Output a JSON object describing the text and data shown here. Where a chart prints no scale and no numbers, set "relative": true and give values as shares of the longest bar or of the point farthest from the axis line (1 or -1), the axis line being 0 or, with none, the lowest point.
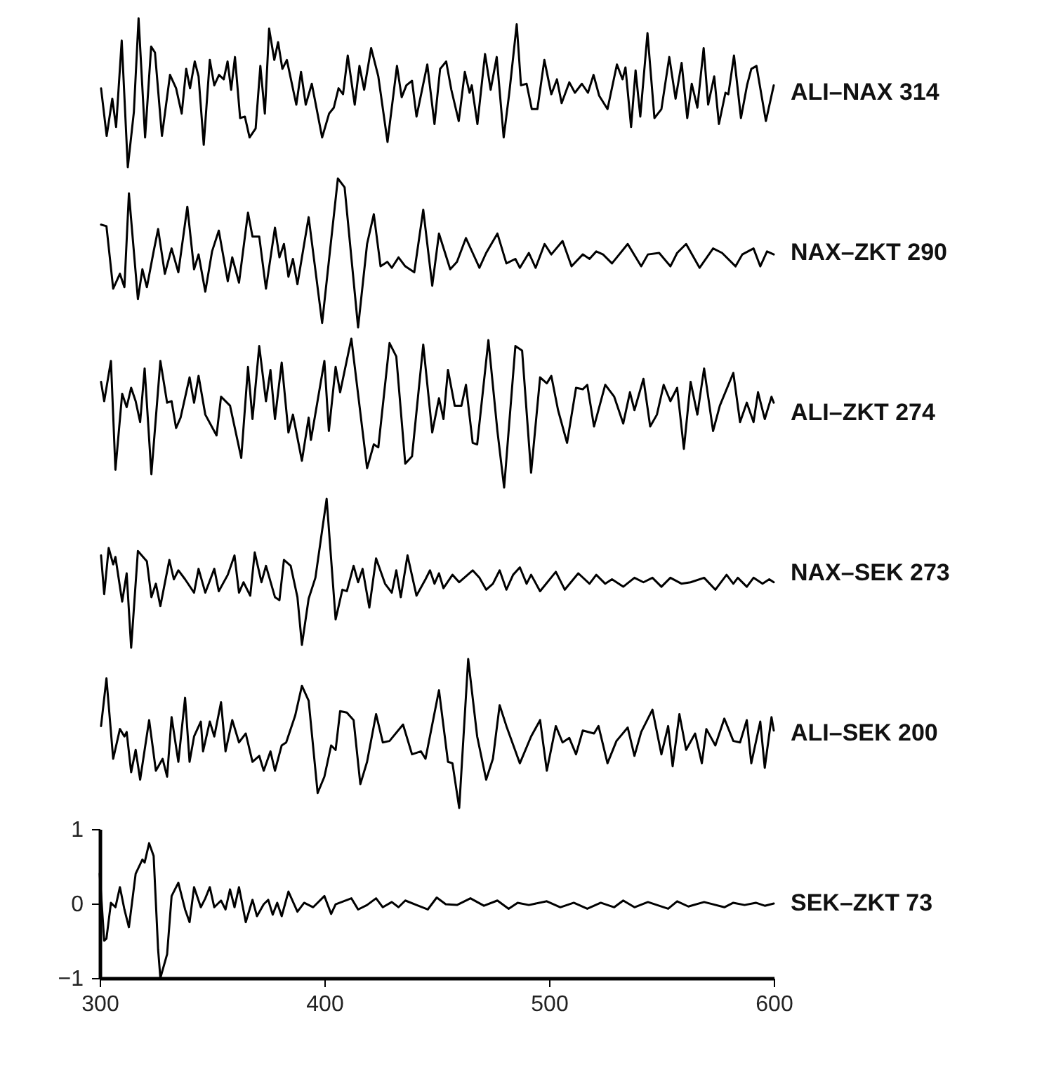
{
  "chart_data": [
    {
      "type": "line",
      "relative": true,
      "xlim": [
        300,
        600
      ],
      "tick_labels": false,
      "x": [
        300.6,
        303.1,
        305.6,
        307.3,
        309.8,
        312.5,
        315.2,
        317.3,
        320.2,
        322.9,
        324.6,
        327.7,
        331.3,
        334.0,
        336.5,
        338.5,
        340.2,
        342.3,
        344.0,
        346.3,
        349.0,
        351.0,
        353.1,
        355.2,
        356.9,
        358.5,
        360.2,
        362.5,
        364.6,
        366.7,
        369.4,
        371.5,
        373.5,
        375.4,
        377.7,
        379.4,
        381.3,
        383.3,
        387.5,
        389.6,
        391.7,
        394.4,
        399.0,
        402.1,
        404.2,
        406.3,
        408.3,
        410.4,
        413.5,
        415.6,
        417.7,
        420.8,
        424.0,
        428.1,
        432.3,
        434.4,
        436.5,
        439.0,
        441.0,
        445.8,
        449.0,
        451.5,
        454.2,
        456.5,
        459.8,
        462.5,
        464.6,
        465.6,
        468.1,
        471.5,
        474.0,
        476.7,
        479.8,
        482.3,
        485.6,
        487.5,
        490.0,
        492.3,
        494.8,
        497.9,
        501.0,
        503.5,
        505.6,
        509.0,
        511.5,
        514.6,
        517.3,
        519.8,
        522.3,
        526.0,
        530.2,
        532.7,
        534.0,
        536.5,
        538.5,
        540.6,
        543.8,
        546.9,
        550.0,
        553.5,
        556.3,
        559.0,
        561.5,
        563.5,
        566.0,
        568.8,
        570.8,
        573.5,
        575.6,
        578.5,
        579.8,
        582.3,
        585.4,
        588.1,
        590.0,
        592.3,
        596.5,
        600.0
      ],
      "series": [
        {
          "name": "ALI–NAX 314",
          "color": "#000000",
          "values": [
            0.53,
            0.21,
            0.46,
            0.27,
            0.85,
            0,
            0.37,
            1,
            0.2,
            0.81,
            0.77,
            0.21,
            0.62,
            0.53,
            0.36,
            0.66,
            0.53,
            0.71,
            0.61,
            0.15,
            0.72,
            0.55,
            0.62,
            0.59,
            0.71,
            0.52,
            0.74,
            0.33,
            0.34,
            0.2,
            0.26,
            0.68,
            0.36,
            0.93,
            0.72,
            0.84,
            0.66,
            0.72,
            0.42,
            0.64,
            0.42,
            0.56,
            0.2,
            0.36,
            0.4,
            0.53,
            0.49,
            0.75,
            0.42,
            0.68,
            0.52,
            0.8,
            0.61,
            0.17,
            0.68,
            0.47,
            0.55,
            0.58,
            0.34,
            0.69,
            0.29,
            0.66,
            0.71,
            0.52,
            0.31,
            0.64,
            0.5,
            0.55,
            0.29,
            0.76,
            0.52,
            0.74,
            0.2,
            0.5,
            0.96,
            0.55,
            0.56,
            0.39,
            0.39,
            0.72,
            0.49,
            0.59,
            0.43,
            0.57,
            0.5,
            0.56,
            0.5,
            0.62,
            0.48,
            0.39,
            0.69,
            0.59,
            0.67,
            0.27,
            0.65,
            0.34,
            0.9,
            0.33,
            0.39,
            0.74,
            0.46,
            0.7,
            0.33,
            0.56,
            0.4,
            0.8,
            0.42,
            0.61,
            0.29,
            0.5,
            0.49,
            0.75,
            0.33,
            0.55,
            0.66,
            0.68,
            0.31,
            0.55
          ]
        }
      ]
    },
    {
      "type": "line",
      "relative": true,
      "xlim": [
        300,
        600
      ],
      "tick_labels": false,
      "x": [
        300.6,
        303,
        306,
        309,
        311,
        313,
        317,
        319,
        321,
        324,
        326,
        329,
        332,
        335,
        339,
        342,
        344,
        347,
        350,
        353,
        357,
        359,
        362,
        366,
        368,
        371,
        374,
        378,
        380,
        382,
        384,
        386,
        388,
        393,
        399,
        406,
        409,
        415,
        419,
        422,
        425,
        428,
        430,
        433,
        436,
        440,
        444,
        448,
        451,
        456,
        459,
        463,
        466,
        469,
        472,
        477,
        481,
        485,
        487,
        491,
        494,
        498,
        501,
        506,
        510,
        515,
        518,
        521,
        524,
        528,
        535,
        541,
        544,
        549,
        554,
        557,
        561,
        567,
        573,
        577,
        583,
        586,
        591,
        594,
        597,
        600
      ],
      "series": [
        {
          "name": "NAX–ZKT 290",
          "color": "#000000",
          "values": [
            0.69,
            0.68,
            0.26,
            0.36,
            0.27,
            0.9,
            0.19,
            0.39,
            0.27,
            0.51,
            0.66,
            0.36,
            0.53,
            0.37,
            0.81,
            0.39,
            0.49,
            0.24,
            0.51,
            0.65,
            0.31,
            0.47,
            0.3,
            0.77,
            0.61,
            0.61,
            0.26,
            0.67,
            0.47,
            0.56,
            0.34,
            0.46,
            0.29,
            0.74,
            0.03,
            1.0,
            0.94,
            0,
            0.56,
            0.76,
            0.41,
            0.44,
            0.4,
            0.47,
            0.41,
            0.37,
            0.79,
            0.28,
            0.63,
            0.39,
            0.44,
            0.6,
            0.5,
            0.4,
            0.5,
            0.63,
            0.43,
            0.46,
            0.4,
            0.5,
            0.4,
            0.56,
            0.49,
            0.58,
            0.41,
            0.49,
            0.46,
            0.51,
            0.49,
            0.43,
            0.56,
            0.41,
            0.49,
            0.5,
            0.41,
            0.5,
            0.56,
            0.4,
            0.53,
            0.5,
            0.41,
            0.49,
            0.53,
            0.41,
            0.51,
            0.49
          ]
        }
      ]
    },
    {
      "type": "line",
      "relative": true,
      "xlim": [
        300,
        600
      ],
      "tick_labels": false,
      "x": [
        300.6,
        302,
        305,
        307,
        310,
        312,
        314,
        316,
        318,
        320,
        323,
        327,
        330,
        332,
        334,
        336,
        340,
        342,
        344,
        347,
        352,
        354,
        358,
        363,
        366,
        368,
        371,
        374,
        376,
        378,
        381,
        384,
        386,
        390,
        393,
        394,
        400,
        402,
        405,
        407,
        412,
        419,
        422,
        424,
        429,
        432,
        436,
        439,
        444,
        448,
        451,
        453,
        455,
        458,
        461,
        463,
        466,
        468,
        473,
        477,
        480,
        485,
        488,
        492,
        496,
        499,
        501,
        504,
        508,
        512,
        515,
        517,
        520,
        525,
        529,
        533,
        536,
        538,
        542,
        545,
        548,
        551,
        554,
        557,
        560,
        563,
        566,
        569,
        573,
        576,
        582,
        585,
        588,
        591,
        593,
        596,
        599,
        600
      ],
      "series": [
        {
          "name": "ALI–ZKT 274",
          "color": "#000000",
          "values": [
            0.71,
            0.58,
            0.85,
            0.12,
            0.63,
            0.54,
            0.67,
            0.58,
            0.44,
            0.8,
            0.09,
            0.85,
            0.57,
            0.58,
            0.4,
            0.47,
            0.74,
            0.57,
            0.75,
            0.49,
            0.35,
            0.61,
            0.55,
            0.2,
            0.81,
            0.46,
            0.95,
            0.58,
            0.79,
            0.46,
            0.84,
            0.37,
            0.49,
            0.18,
            0.47,
            0.32,
            0.85,
            0.38,
            0.81,
            0.64,
            1.0,
            0.13,
            0.29,
            0.27,
            0.97,
            0.88,
            0.16,
            0.21,
            0.96,
            0.37,
            0.6,
            0.46,
            0.79,
            0.55,
            0.55,
            0.69,
            0.3,
            0.29,
            0.99,
            0.38,
            0,
            0.95,
            0.92,
            0.1,
            0.74,
            0.7,
            0.75,
            0.52,
            0.3,
            0.67,
            0.66,
            0.69,
            0.41,
            0.69,
            0.61,
            0.43,
            0.64,
            0.52,
            0.73,
            0.41,
            0.49,
            0.69,
            0.58,
            0.67,
            0.26,
            0.71,
            0.49,
            0.8,
            0.38,
            0.55,
            0.77,
            0.44,
            0.57,
            0.44,
            0.64,
            0.46,
            0.61,
            0.57
          ]
        }
      ]
    },
    {
      "type": "line",
      "relative": true,
      "xlim": [
        300,
        600
      ],
      "tick_labels": false,
      "x": [
        300.6,
        302,
        304,
        306,
        307,
        310,
        312,
        314,
        317,
        321,
        323,
        325,
        327,
        331,
        333,
        335,
        338,
        342,
        344,
        347,
        351,
        353,
        357,
        360,
        362,
        364,
        367,
        369,
        372,
        374,
        378,
        380,
        382,
        385,
        388,
        390,
        393,
        396,
        401,
        405,
        408,
        410,
        413,
        415,
        417,
        420,
        423,
        427,
        430,
        432,
        434,
        437,
        441,
        445,
        447,
        449,
        451,
        453,
        457,
        460,
        466,
        469,
        472,
        475,
        478,
        481,
        484,
        487,
        490,
        492,
        496,
        503,
        507,
        513,
        518,
        521,
        525,
        528,
        533,
        538,
        542,
        546,
        550,
        554,
        559,
        563,
        569,
        574,
        579,
        582,
        584,
        588,
        591,
        595,
        598,
        600
      ],
      "series": [
        {
          "name": "NAX–SEK 273",
          "color": "#000000",
          "values": [
            0.62,
            0.36,
            0.67,
            0.56,
            0.61,
            0.31,
            0.5,
            0,
            0.65,
            0.58,
            0.34,
            0.43,
            0.28,
            0.59,
            0.46,
            0.52,
            0.46,
            0.37,
            0.53,
            0.37,
            0.53,
            0.38,
            0.49,
            0.62,
            0.37,
            0.44,
            0.35,
            0.64,
            0.44,
            0.55,
            0.34,
            0.32,
            0.59,
            0.55,
            0.34,
            0.02,
            0.33,
            0.47,
            1.0,
            0.19,
            0.39,
            0.38,
            0.55,
            0.44,
            0.53,
            0.27,
            0.6,
            0.43,
            0.37,
            0.52,
            0.34,
            0.62,
            0.35,
            0.46,
            0.52,
            0.43,
            0.5,
            0.4,
            0.49,
            0.44,
            0.52,
            0.47,
            0.39,
            0.43,
            0.52,
            0.39,
            0.49,
            0.54,
            0.43,
            0.49,
            0.38,
            0.51,
            0.39,
            0.5,
            0.43,
            0.49,
            0.43,
            0.46,
            0.41,
            0.47,
            0.44,
            0.47,
            0.41,
            0.47,
            0.43,
            0.44,
            0.47,
            0.39,
            0.49,
            0.43,
            0.47,
            0.41,
            0.47,
            0.43,
            0.46,
            0.44
          ]
        }
      ]
    },
    {
      "type": "line",
      "relative": true,
      "xlim": [
        300,
        600
      ],
      "tick_labels": false,
      "x": [
        300.6,
        303,
        306,
        309,
        311,
        312,
        314,
        316,
        318,
        322,
        325,
        328,
        330,
        332,
        335,
        338,
        340,
        342,
        345,
        346,
        349,
        351,
        354,
        356,
        359,
        362,
        365,
        368,
        371,
        373,
        376,
        378,
        381,
        383,
        387,
        390,
        393,
        397,
        400,
        403,
        405,
        407,
        410,
        413,
        416,
        419,
        423,
        426,
        429,
        435,
        439,
        443,
        445,
        451,
        455,
        457,
        460,
        464,
        468,
        472,
        475,
        478,
        481,
        487,
        492,
        496,
        499,
        503,
        506,
        509,
        512,
        515,
        520,
        522,
        526,
        530,
        535,
        538,
        541,
        546,
        550,
        553,
        555,
        558,
        561,
        565,
        568,
        570,
        574,
        578,
        582,
        585,
        588,
        590,
        594,
        596,
        599,
        600
      ],
      "series": [
        {
          "name": "ALI–SEK 200",
          "color": "#000000",
          "values": [
            0.55,
            0.87,
            0.33,
            0.53,
            0.48,
            0.51,
            0.24,
            0.39,
            0.19,
            0.59,
            0.25,
            0.33,
            0.21,
            0.61,
            0.31,
            0.74,
            0.31,
            0.48,
            0.58,
            0.38,
            0.58,
            0.48,
            0.71,
            0.38,
            0.59,
            0.44,
            0.5,
            0.31,
            0.35,
            0.25,
            0.38,
            0.25,
            0.42,
            0.44,
            0.62,
            0.82,
            0.72,
            0.1,
            0.21,
            0.42,
            0.39,
            0.65,
            0.64,
            0.59,
            0.16,
            0.31,
            0.63,
            0.44,
            0.45,
            0.56,
            0.36,
            0.38,
            0.33,
            0.79,
            0.31,
            0.3,
            0,
            1.0,
            0.48,
            0.19,
            0.33,
            0.69,
            0.55,
            0.3,
            0.48,
            0.59,
            0.25,
            0.55,
            0.44,
            0.47,
            0.36,
            0.52,
            0.5,
            0.55,
            0.3,
            0.45,
            0.54,
            0.35,
            0.51,
            0.66,
            0.36,
            0.55,
            0.28,
            0.63,
            0.39,
            0.5,
            0.3,
            0.53,
            0.42,
            0.6,
            0.45,
            0.44,
            0.59,
            0.3,
            0.58,
            0.27,
            0.61,
            0.52
          ]
        }
      ]
    },
    {
      "type": "line",
      "xlim": [
        300,
        600
      ],
      "xticks": [
        300,
        400,
        500,
        600
      ],
      "ylim": [
        -1,
        1
      ],
      "yticks": [
        -1,
        0,
        1
      ],
      "x": [
        300,
        302,
        303,
        305,
        307,
        309,
        311,
        313,
        316,
        319,
        320,
        322,
        324,
        326,
        327,
        330,
        332,
        335,
        338,
        340,
        342,
        345,
        347,
        349,
        351,
        354,
        356,
        358,
        360,
        362,
        365,
        368,
        370,
        373,
        375,
        377,
        379,
        381,
        384,
        388,
        391,
        395,
        400,
        403,
        405,
        412,
        415,
        419,
        423,
        426,
        430,
        433,
        436,
        441,
        446,
        450,
        454,
        459,
        465,
        471,
        477,
        482,
        486,
        491,
        499,
        505,
        511,
        517,
        523,
        529,
        533,
        538,
        544,
        553,
        557,
        562,
        569,
        578,
        582,
        587,
        592,
        596,
        600
      ],
      "series": [
        {
          "name": "SEK–ZKT 73",
          "color": "#000000",
          "values": [
            0.4,
            -0.5,
            -0.47,
            0.01,
            -0.05,
            0.22,
            -0.08,
            -0.32,
            0.4,
            0.59,
            0.55,
            0.81,
            0.64,
            -0.62,
            -1.0,
            -0.68,
            0.1,
            0.28,
            -0.08,
            -0.25,
            0.22,
            -0.05,
            0.07,
            0.22,
            -0.05,
            0.04,
            -0.08,
            0.19,
            -0.05,
            0.22,
            -0.25,
            0.05,
            -0.17,
            -0.01,
            0.05,
            -0.15,
            0.01,
            -0.17,
            0.16,
            -0.11,
            0.01,
            -0.05,
            0.1,
            -0.14,
            -0.01,
            0.07,
            -0.08,
            -0.02,
            0.07,
            -0.05,
            0.02,
            -0.05,
            0.04,
            -0.02,
            -0.08,
            0.08,
            -0.01,
            -0.02,
            0.07,
            -0.03,
            0.04,
            -0.07,
            0.01,
            -0.02,
            0.03,
            -0.05,
            0.01,
            -0.07,
            0.01,
            -0.05,
            0.04,
            -0.05,
            0.02,
            -0.07,
            0.03,
            -0.04,
            0.02,
            -0.05,
            0.01,
            -0.02,
            0.01,
            -0.03,
            0.0
          ]
        }
      ]
    }
  ]
}
